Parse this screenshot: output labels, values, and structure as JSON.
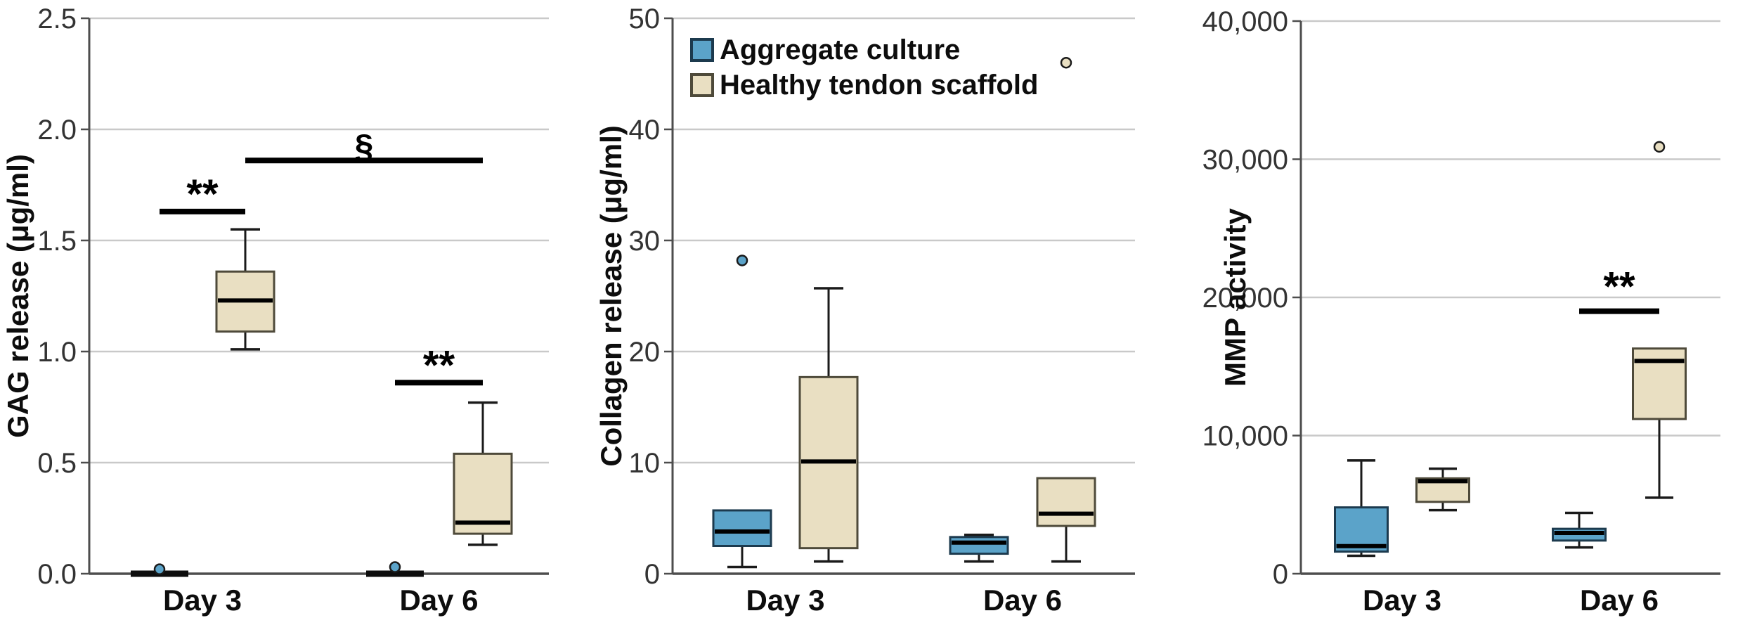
{
  "legend": {
    "items": [
      {
        "label": "Aggregate culture",
        "color": "#5BA3C9",
        "border": "#1c3a4e"
      },
      {
        "label": "Healthy tendon scaffold",
        "color": "#E9DFC2",
        "border": "#4e4a3a"
      }
    ]
  },
  "colors": {
    "aggregate_fill": "#5BA3C9",
    "aggregate_border": "#1c3a4e",
    "scaffold_fill": "#E9DFC2",
    "scaffold_border": "#4e4a3a",
    "gridline": "#c9c9c9",
    "axis": "#4d4d4d",
    "median": "#000000"
  },
  "chart_data": [
    {
      "type": "boxplot",
      "id": "gag",
      "ylabel": "GAG release (μg/ml)",
      "ylim": [
        0,
        2.5
      ],
      "yticks": [
        0,
        0.5,
        1.0,
        1.5,
        2.0,
        2.5
      ],
      "ytick_labels": [
        "0.0",
        "0.5",
        "1.0",
        "1.5",
        "2.0",
        "2.5"
      ],
      "categories": [
        "Day 3",
        "Day 6"
      ],
      "grid": true,
      "series": [
        {
          "name": "Aggregate culture",
          "color": "#5BA3C9",
          "border": "#1c3a4e",
          "boxes": [
            {
              "category": "Day 3",
              "min": 0,
              "q1": 0,
              "median": 0,
              "q3": 0,
              "max": 0,
              "collapsed": true,
              "outliers": [
                0.02
              ]
            },
            {
              "category": "Day 6",
              "min": 0,
              "q1": 0,
              "median": 0,
              "q3": 0,
              "max": 0,
              "collapsed": true,
              "outliers": [
                0.03
              ]
            }
          ]
        },
        {
          "name": "Healthy tendon scaffold",
          "color": "#E9DFC2",
          "border": "#4e4a3a",
          "boxes": [
            {
              "category": "Day 3",
              "min": 1.01,
              "q1": 1.09,
              "median": 1.23,
              "q3": 1.36,
              "max": 1.55
            },
            {
              "category": "Day 6",
              "min": 0.13,
              "q1": 0.18,
              "median": 0.23,
              "q3": 0.54,
              "max": 0.77
            }
          ]
        }
      ],
      "annotations": [
        {
          "label": "**",
          "bar_y": 1.63,
          "label_y": 1.74,
          "from": [
            0,
            0
          ],
          "to": [
            0,
            1
          ]
        },
        {
          "label": "**",
          "bar_y": 0.86,
          "label_y": 0.97,
          "from": [
            1,
            0
          ],
          "to": [
            1,
            1
          ]
        },
        {
          "label": "§",
          "bar_y": 1.86,
          "label_y": 1.98,
          "from": [
            0,
            1
          ],
          "to": [
            1,
            1
          ]
        }
      ]
    },
    {
      "type": "boxplot",
      "id": "collagen",
      "ylabel": "Collagen release (μg/ml)",
      "ylim": [
        0,
        50
      ],
      "yticks": [
        0,
        10,
        20,
        30,
        40,
        50
      ],
      "ytick_labels": [
        "0",
        "10",
        "20",
        "30",
        "40",
        "50"
      ],
      "categories": [
        "Day 3",
        "Day 6"
      ],
      "grid": true,
      "series": [
        {
          "name": "Aggregate culture",
          "color": "#5BA3C9",
          "border": "#1c3a4e",
          "boxes": [
            {
              "category": "Day 3",
              "min": 0.6,
              "q1": 2.5,
              "median": 3.8,
              "q3": 5.7,
              "max": 5.7,
              "outliers": [
                28.2
              ]
            },
            {
              "category": "Day 6",
              "min": 1.1,
              "q1": 1.8,
              "median": 2.8,
              "q3": 3.3,
              "max": 3.5
            }
          ]
        },
        {
          "name": "Healthy tendon scaffold",
          "color": "#E9DFC2",
          "border": "#4e4a3a",
          "boxes": [
            {
              "category": "Day 3",
              "min": 1.1,
              "q1": 2.3,
              "median": 10.1,
              "q3": 17.7,
              "max": 25.7
            },
            {
              "category": "Day 6",
              "min": 1.1,
              "q1": 4.3,
              "median": 5.4,
              "q3": 8.6,
              "max": 8.6,
              "outliers": [
                46
              ]
            }
          ]
        }
      ],
      "annotations": []
    },
    {
      "type": "boxplot",
      "id": "mmp",
      "ylabel": "MMP activity",
      "ylim": [
        0,
        40000
      ],
      "yticks": [
        0,
        10000,
        20000,
        30000,
        40000
      ],
      "ytick_labels": [
        "0",
        "10,000",
        "20,000",
        "30,000",
        "40,000"
      ],
      "categories": [
        "Day 3",
        "Day 6"
      ],
      "grid": true,
      "series": [
        {
          "name": "Aggregate culture",
          "color": "#5BA3C9",
          "border": "#1c3a4e",
          "boxes": [
            {
              "category": "Day 3",
              "min": 1300,
              "q1": 1600,
              "median": 2000,
              "q3": 4800,
              "max": 8200
            },
            {
              "category": "Day 6",
              "min": 1900,
              "q1": 2400,
              "median": 2950,
              "q3": 3250,
              "max": 4400
            }
          ]
        },
        {
          "name": "Healthy tendon scaffold",
          "color": "#E9DFC2",
          "border": "#4e4a3a",
          "boxes": [
            {
              "category": "Day 3",
              "min": 4600,
              "q1": 5200,
              "median": 6700,
              "q3": 6900,
              "max": 7600
            },
            {
              "category": "Day 6",
              "min": 5500,
              "q1": 11200,
              "median": 15400,
              "q3": 16300,
              "max": 16300,
              "outliers": [
                30900
              ]
            }
          ]
        }
      ],
      "annotations": [
        {
          "label": "**",
          "bar_y": 19000,
          "label_y": 21300,
          "from": [
            1,
            0
          ],
          "to": [
            1,
            1
          ]
        }
      ]
    }
  ]
}
